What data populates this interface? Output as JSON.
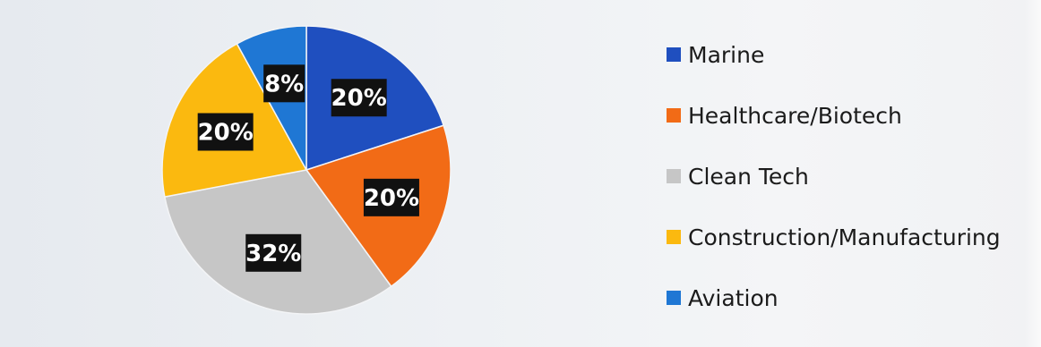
{
  "chart_data": {
    "type": "pie",
    "title": "",
    "slices": [
      {
        "label": "Marine",
        "value": 20,
        "display": "20%",
        "color": "#1f4fbf"
      },
      {
        "label": "Healthcare/Biotech",
        "value": 20,
        "display": "20%",
        "color": "#f26b16"
      },
      {
        "label": "Clean Tech",
        "value": 32,
        "display": "32%",
        "color": "#c6c6c6"
      },
      {
        "label": "Construction/Manufacturing",
        "value": 20,
        "display": "20%",
        "color": "#fbb90f"
      },
      {
        "label": "Aviation",
        "value": 8,
        "display": "8%",
        "color": "#1f77d4"
      }
    ],
    "start": "top, clockwise",
    "legend_position": "right",
    "data_label_style": "white bold text on black box"
  }
}
